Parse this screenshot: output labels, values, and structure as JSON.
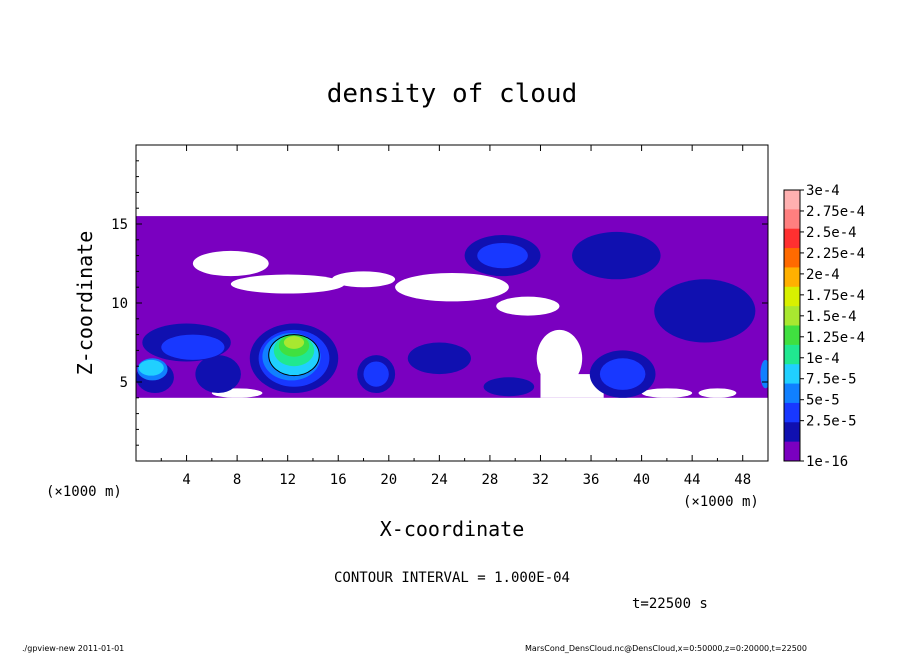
{
  "chart_data": {
    "type": "heatmap",
    "title": "density of cloud",
    "xlabel": "X-coordinate",
    "ylabel": "Z-coordinate",
    "x_unit": "(×1000 m)",
    "y_unit": "(×1000 m)",
    "xlim": [
      0,
      50
    ],
    "ylim": [
      0,
      20
    ],
    "x_ticks": [
      4,
      8,
      12,
      16,
      20,
      24,
      28,
      32,
      36,
      40,
      44,
      48
    ],
    "y_ticks": [
      5,
      10,
      15
    ],
    "contour_interval": "CONTOUR INTERVAL = 1.000E-04",
    "time_label": "t=22500 s",
    "colorbar": {
      "labels": [
        "3e-4",
        "2.75e-4",
        "2.5e-4",
        "2.25e-4",
        "2e-4",
        "1.75e-4",
        "1.5e-4",
        "1.25e-4",
        "1e-4",
        "7.5e-5",
        "5e-5",
        "2.5e-5",
        "1e-16"
      ],
      "colors": [
        "#ffb0b0",
        "#ff7f7f",
        "#ff3030",
        "#ff6a00",
        "#ffb000",
        "#d8f000",
        "#a8e830",
        "#40e040",
        "#20e890",
        "#20d0ff",
        "#1080ff",
        "#1838ff",
        "#1010b0",
        "#7a00c0"
      ]
    },
    "regions": [
      {
        "level": 0,
        "kind": "rect",
        "x0": 0,
        "x1": 50,
        "z0": 4.0,
        "z1": 15.5
      },
      {
        "level": -1,
        "kind": "ellipse",
        "cx": 7.5,
        "cz": 12.5,
        "rx": 3.0,
        "rz": 0.8
      },
      {
        "level": -1,
        "kind": "ellipse",
        "cx": 12.0,
        "cz": 11.2,
        "rx": 4.5,
        "rz": 0.6
      },
      {
        "level": -1,
        "kind": "ellipse",
        "cx": 18.0,
        "cz": 11.5,
        "rx": 2.5,
        "rz": 0.5
      },
      {
        "level": -1,
        "kind": "ellipse",
        "cx": 25.0,
        "cz": 11.0,
        "rx": 4.5,
        "rz": 0.9
      },
      {
        "level": -1,
        "kind": "ellipse",
        "cx": 31.0,
        "cz": 9.8,
        "rx": 2.5,
        "rz": 0.6
      },
      {
        "level": -1,
        "kind": "ellipse",
        "cx": 33.5,
        "cz": 6.5,
        "rx": 1.8,
        "rz": 1.8
      },
      {
        "level": -1,
        "kind": "rect",
        "x0": 32,
        "x1": 37,
        "z0": 4.0,
        "z1": 5.5
      },
      {
        "level": -1,
        "kind": "ellipse",
        "cx": 8.0,
        "cz": 4.3,
        "rx": 2.0,
        "rz": 0.3
      },
      {
        "level": -1,
        "kind": "ellipse",
        "cx": 42.0,
        "cz": 4.3,
        "rx": 2.0,
        "rz": 0.3
      },
      {
        "level": -1,
        "kind": "ellipse",
        "cx": 46.0,
        "cz": 4.3,
        "rx": 1.5,
        "rz": 0.3
      },
      {
        "level": 1,
        "kind": "ellipse",
        "cx": 4.0,
        "cz": 7.5,
        "rx": 3.5,
        "rz": 1.2
      },
      {
        "level": 1,
        "kind": "ellipse",
        "cx": 1.5,
        "cz": 5.3,
        "rx": 1.5,
        "rz": 1.0
      },
      {
        "level": 1,
        "kind": "ellipse",
        "cx": 6.5,
        "cz": 5.5,
        "rx": 1.8,
        "rz": 1.2
      },
      {
        "level": 1,
        "kind": "ellipse",
        "cx": 12.5,
        "cz": 6.5,
        "rx": 3.5,
        "rz": 2.2
      },
      {
        "level": 1,
        "kind": "ellipse",
        "cx": 19.0,
        "cz": 5.5,
        "rx": 1.5,
        "rz": 1.2
      },
      {
        "level": 1,
        "kind": "ellipse",
        "cx": 29.5,
        "cz": 4.7,
        "rx": 2.0,
        "rz": 0.6
      },
      {
        "level": 1,
        "kind": "ellipse",
        "cx": 29.0,
        "cz": 13.0,
        "rx": 3.0,
        "rz": 1.3
      },
      {
        "level": 1,
        "kind": "ellipse",
        "cx": 38.5,
        "cz": 5.5,
        "rx": 2.6,
        "rz": 1.5
      },
      {
        "level": 1,
        "kind": "ellipse",
        "cx": 38.0,
        "cz": 13.0,
        "rx": 3.5,
        "rz": 1.5
      },
      {
        "level": 1,
        "kind": "ellipse",
        "cx": 45.0,
        "cz": 9.5,
        "rx": 4.0,
        "rz": 2.0
      },
      {
        "level": 1,
        "kind": "ellipse",
        "cx": 24.0,
        "cz": 6.5,
        "rx": 2.5,
        "rz": 1.0
      },
      {
        "level": 2,
        "kind": "ellipse",
        "cx": 4.5,
        "cz": 7.2,
        "rx": 2.5,
        "rz": 0.8
      },
      {
        "level": 2,
        "kind": "ellipse",
        "cx": 12.5,
        "cz": 6.5,
        "rx": 2.8,
        "rz": 1.8
      },
      {
        "level": 2,
        "kind": "ellipse",
        "cx": 19.0,
        "cz": 5.5,
        "rx": 1.0,
        "rz": 0.8
      },
      {
        "level": 2,
        "kind": "ellipse",
        "cx": 38.5,
        "cz": 5.5,
        "rx": 1.8,
        "rz": 1.0
      },
      {
        "level": 2,
        "kind": "ellipse",
        "cx": 29.0,
        "cz": 13.0,
        "rx": 2.0,
        "rz": 0.8
      },
      {
        "level": 3,
        "kind": "ellipse",
        "cx": 1.3,
        "cz": 5.8,
        "rx": 1.2,
        "rz": 0.7
      },
      {
        "level": 3,
        "kind": "ellipse",
        "cx": 12.3,
        "cz": 6.6,
        "rx": 2.3,
        "rz": 1.5
      },
      {
        "level": 3,
        "kind": "ellipse",
        "cx": 49.8,
        "cz": 5.5,
        "rx": 0.4,
        "rz": 0.9
      },
      {
        "level": 4,
        "kind": "ellipse",
        "cx": 1.2,
        "cz": 5.9,
        "rx": 1.0,
        "rz": 0.5
      },
      {
        "level": 4,
        "kind": "ellipse",
        "cx": 12.5,
        "cz": 6.7,
        "rx": 2.0,
        "rz": 1.3
      },
      {
        "level": 5,
        "kind": "ellipse",
        "cx": 12.5,
        "cz": 7.0,
        "rx": 1.6,
        "rz": 1.0
      },
      {
        "level": 6,
        "kind": "ellipse",
        "cx": 12.5,
        "cz": 7.3,
        "rx": 1.2,
        "rz": 0.7
      },
      {
        "level": 7,
        "kind": "ellipse",
        "cx": 12.5,
        "cz": 7.5,
        "rx": 0.8,
        "rz": 0.4
      }
    ]
  },
  "footer": {
    "left": "./gpview-new   2011-01-01",
    "right": "MarsCond_DensCloud.nc@DensCloud,x=0:50000,z=0:20000,t=22500"
  }
}
